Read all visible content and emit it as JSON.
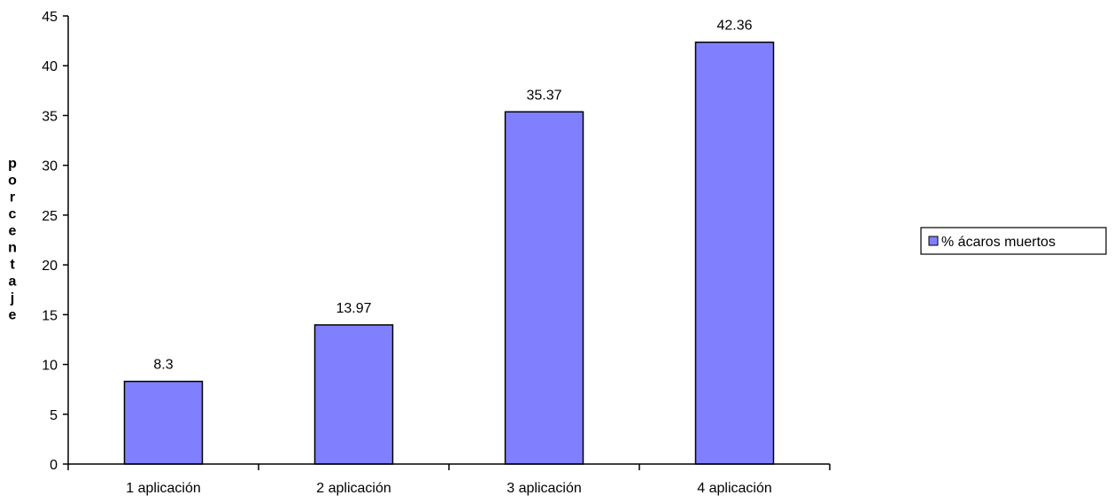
{
  "chart_data": {
    "type": "bar",
    "categories": [
      "1 aplicación",
      "2 aplicación",
      "3 aplicación",
      "4 aplicación"
    ],
    "series": [
      {
        "name": "% ácaros muertos",
        "values": [
          8.3,
          13.97,
          35.37,
          42.36
        ]
      }
    ],
    "data_labels": [
      "8.3",
      "13.97",
      "35.37",
      "42.36"
    ],
    "ylabel": "porcentaje",
    "xlabel": "",
    "ylim": [
      0,
      45
    ],
    "yticks": [
      0,
      5,
      10,
      15,
      20,
      25,
      30,
      35,
      40,
      45
    ],
    "grid": false,
    "legend_position": "right",
    "bar_color": "#8080ff",
    "bar_edge_color": "#000000"
  }
}
